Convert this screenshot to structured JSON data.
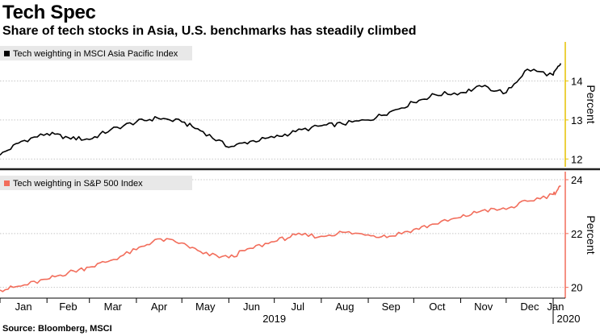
{
  "title": "Tech Spec",
  "subtitle": "Share of tech stocks in Asia, U.S. benchmarks has steadily climbed",
  "source": "Source: Bloomberg, MSCI",
  "colors": {
    "top_series": "#000000",
    "bottom_series": "#f26d5b",
    "divider": "#222222",
    "top_axis": "#e6c200",
    "bottom_axis": "#f26d5b",
    "grid": "#c8c8c8"
  },
  "chart_data": [
    {
      "type": "line",
      "legend": "top-left",
      "series": [
        {
          "name": "Tech weighting in MSCI Asia Pacific Index",
          "x": [
            "2019-01-01",
            "2019-01-15",
            "2019-02-01",
            "2019-02-15",
            "2019-03-01",
            "2019-03-15",
            "2019-04-01",
            "2019-04-15",
            "2019-05-01",
            "2019-05-15",
            "2019-06-01",
            "2019-06-15",
            "2019-07-01",
            "2019-07-15",
            "2019-08-01",
            "2019-08-15",
            "2019-09-01",
            "2019-09-15",
            "2019-10-01",
            "2019-10-15",
            "2019-11-01",
            "2019-11-15",
            "2019-12-01",
            "2019-12-15",
            "2020-01-01",
            "2020-01-06"
          ],
          "values": [
            12.1,
            12.45,
            12.65,
            12.55,
            12.5,
            12.75,
            12.95,
            13.05,
            12.95,
            12.7,
            12.3,
            12.45,
            12.55,
            12.7,
            12.85,
            12.9,
            13.0,
            13.2,
            13.45,
            13.65,
            13.7,
            13.85,
            13.7,
            14.3,
            14.15,
            14.45
          ]
        }
      ],
      "y_ticks": [
        12,
        13,
        14
      ],
      "ylim": [
        11.8,
        15.0
      ],
      "ylabel": "Percent",
      "grid": true
    },
    {
      "type": "line",
      "legend": "top-left",
      "series": [
        {
          "name": "Tech weighting in S&P 500 Index",
          "x": [
            "2019-01-01",
            "2019-01-15",
            "2019-02-01",
            "2019-02-15",
            "2019-03-01",
            "2019-03-15",
            "2019-04-01",
            "2019-04-15",
            "2019-05-01",
            "2019-05-15",
            "2019-06-01",
            "2019-06-15",
            "2019-07-01",
            "2019-07-15",
            "2019-08-01",
            "2019-08-15",
            "2019-09-01",
            "2019-09-15",
            "2019-10-01",
            "2019-10-15",
            "2019-11-01",
            "2019-11-15",
            "2019-12-01",
            "2019-12-15",
            "2020-01-01",
            "2020-01-06"
          ],
          "values": [
            19.9,
            20.05,
            20.3,
            20.55,
            20.75,
            21.0,
            21.4,
            21.8,
            21.65,
            21.25,
            21.1,
            21.45,
            21.7,
            21.95,
            21.9,
            22.05,
            21.95,
            21.9,
            22.15,
            22.35,
            22.6,
            22.85,
            22.9,
            23.2,
            23.45,
            23.75
          ]
        }
      ],
      "y_ticks": [
        20,
        22,
        24
      ],
      "ylim": [
        19.6,
        24.3
      ],
      "ylabel": "Percent",
      "grid": true
    }
  ],
  "x_axis": {
    "months": [
      "Jan",
      "Feb",
      "Mar",
      "Apr",
      "May",
      "Jun",
      "Jul",
      "Aug",
      "Sep",
      "Oct",
      "Nov",
      "Dec",
      "Jan"
    ],
    "years": [
      "2019",
      "2020"
    ]
  }
}
